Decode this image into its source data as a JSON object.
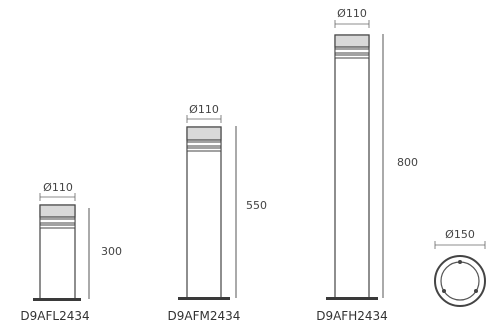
{
  "products": [
    {
      "model": "D9AFL2434",
      "diameter": "Ø110",
      "height": "300"
    },
    {
      "model": "D9AFM2434",
      "diameter": "Ø110",
      "height": "550"
    },
    {
      "model": "D9AFH2434",
      "diameter": "Ø110",
      "height": "800"
    }
  ],
  "top_view": {
    "diameter": "Ø150"
  },
  "colors": {
    "line": "#444444",
    "head": "#d9d9d9",
    "base": "#3a3a3a"
  }
}
